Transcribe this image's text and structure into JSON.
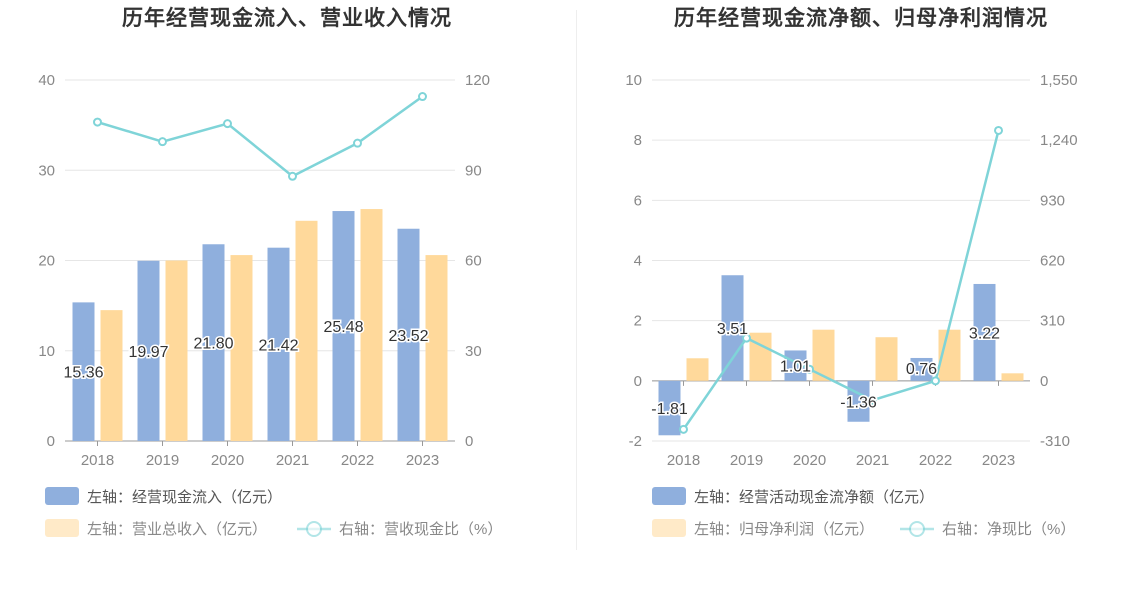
{
  "colors": {
    "blue": "#8fafdd",
    "orange": "#ffd99b",
    "line": "#7fd4d8",
    "grid": "#e6e6e6",
    "axis": "#888888"
  },
  "chart_data": [
    {
      "type": "bar",
      "title": "历年经营现金流入、营业收入情况",
      "categories": [
        "2018",
        "2019",
        "2020",
        "2021",
        "2022",
        "2023"
      ],
      "left_axis": {
        "ticks": [
          "40",
          "30",
          "20",
          "10",
          "0"
        ],
        "range": [
          0,
          40
        ]
      },
      "right_axis": {
        "ticks": [
          "120",
          "90",
          "60",
          "30",
          "0"
        ],
        "range": [
          0,
          120
        ]
      },
      "series": [
        {
          "name": "左轴：经营现金流入（亿元）",
          "axis": "left",
          "kind": "bar",
          "values": [
            15.36,
            19.97,
            21.8,
            21.42,
            25.48,
            23.52
          ],
          "labels": [
            "15.36",
            "19.97",
            "21.80",
            "21.42",
            "25.48",
            "23.52"
          ]
        },
        {
          "name": "左轴：营业总收入（亿元）",
          "axis": "left",
          "kind": "bar",
          "values": [
            14.5,
            20.0,
            20.6,
            24.4,
            25.7,
            20.6
          ]
        },
        {
          "name": "右轴：营收现金比（%）",
          "axis": "right",
          "kind": "line",
          "values": [
            106,
            99.5,
            105.5,
            88,
            99,
            114.5
          ]
        }
      ]
    },
    {
      "type": "bar",
      "title": "历年经营现金流净额、归母净利润情况",
      "categories": [
        "2018",
        "2019",
        "2020",
        "2021",
        "2022",
        "2023"
      ],
      "left_axis": {
        "ticks": [
          "10",
          "8",
          "6",
          "4",
          "2",
          "0",
          "-2"
        ],
        "range": [
          -2,
          10
        ]
      },
      "right_axis": {
        "ticks": [
          "1,550",
          "1,240",
          "930",
          "620",
          "310",
          "0",
          "-310"
        ],
        "range": [
          -310,
          1550
        ]
      },
      "series": [
        {
          "name": "左轴：经营活动现金流净额（亿元）",
          "axis": "left",
          "kind": "bar",
          "values": [
            -1.81,
            3.51,
            1.01,
            -1.36,
            0.76,
            3.22
          ],
          "labels": [
            "-1.81",
            "3.51",
            "1.01",
            "-1.36",
            "0.76",
            "3.22"
          ]
        },
        {
          "name": "左轴：归母净利润（亿元）",
          "axis": "left",
          "kind": "bar",
          "values": [
            0.75,
            1.6,
            1.7,
            1.45,
            1.7,
            0.25
          ]
        },
        {
          "name": "右轴：净现比（%）",
          "axis": "right",
          "kind": "line",
          "values": [
            -250,
            220,
            60,
            -100,
            0,
            1290
          ]
        }
      ]
    }
  ]
}
